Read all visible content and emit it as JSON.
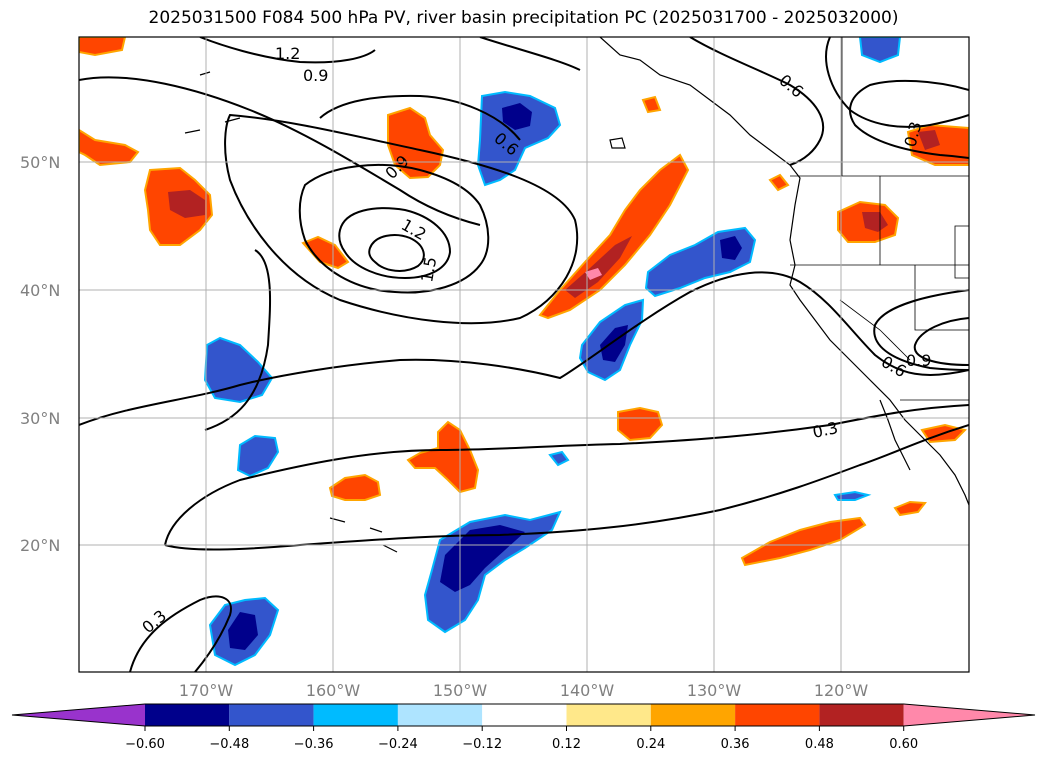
{
  "title": "2025031500 F084 500 hPa PV, river basin precipitation PC (2025031700 - 2025032000)",
  "lat_labels": [
    "20°N",
    "30°N",
    "40°N",
    "50°N"
  ],
  "lon_labels": [
    "170°W",
    "160°W",
    "150°W",
    "140°W",
    "130°W",
    "120°W"
  ],
  "contour_labels": [
    "1.2",
    "0.9",
    "0.6",
    "0.9",
    "1.2",
    "1.5",
    "0.6",
    "0.6",
    "0.9",
    "0.3",
    "0.3",
    "0.3"
  ],
  "colorbar": {
    "ticks": [
      "−0.60",
      "−0.48",
      "−0.36",
      "−0.24",
      "−0.12",
      "0.12",
      "0.24",
      "0.36",
      "0.48",
      "0.60"
    ],
    "colors": [
      "#9933cc",
      "#00008b",
      "#3355cc",
      "#00bbff",
      "#aee4ff",
      "#ffffff",
      "#ffe88a",
      "#ffa500",
      "#ff4500",
      "#b22222",
      "#ff88aa"
    ]
  },
  "icons": [
    "colorbar-left-arrow",
    "colorbar-right-arrow"
  ]
}
